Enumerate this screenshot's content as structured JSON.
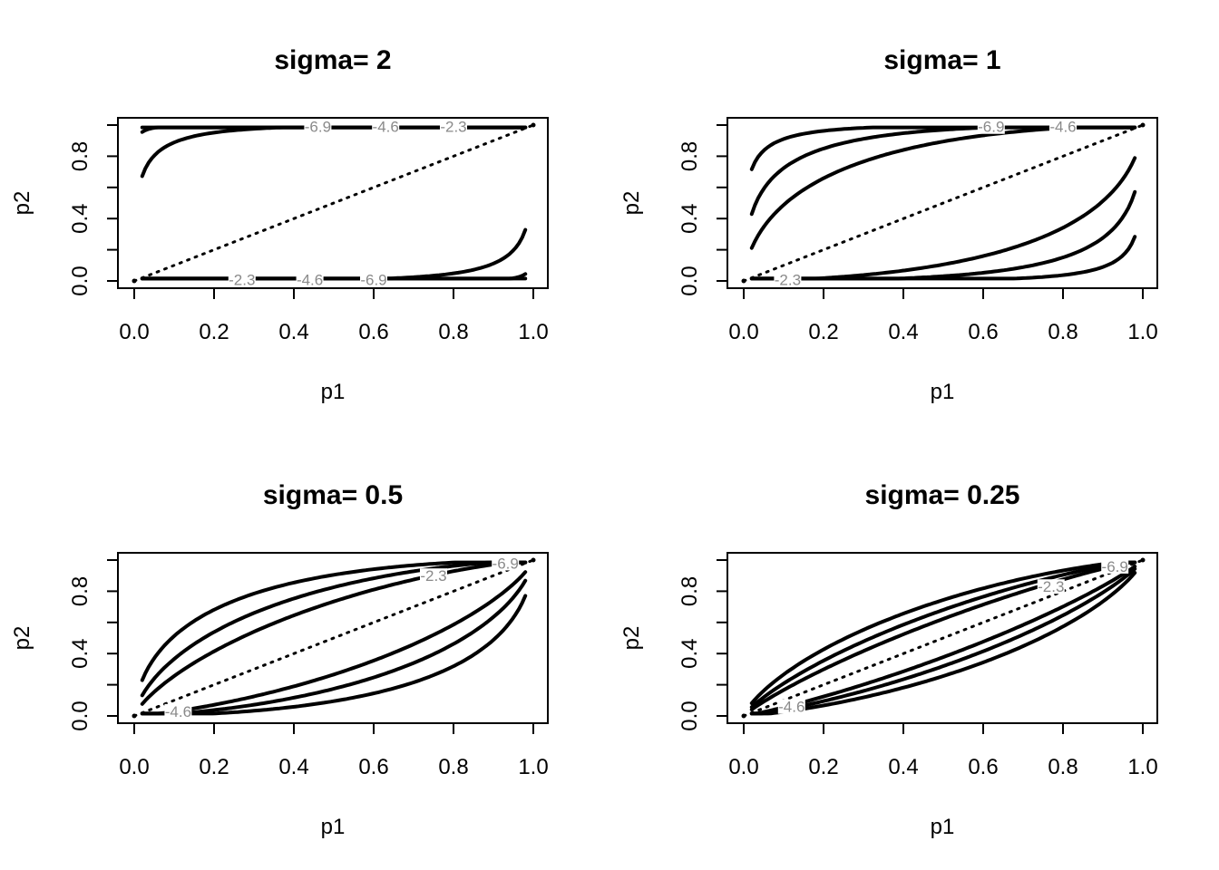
{
  "chart_data": [
    {
      "type": "line",
      "title": "sigma= 2",
      "sigma": 2,
      "xlabel": "p1",
      "ylabel": "p2",
      "xlim": [
        0,
        1
      ],
      "ylim": [
        0,
        1
      ],
      "xticks": [
        "0.0",
        "0.2",
        "0.4",
        "0.6",
        "0.8",
        "1.0"
      ],
      "yticks": [
        "0.0",
        "0.4",
        "0.8"
      ],
      "contour_levels": [
        -2.3,
        -4.6,
        -6.9
      ],
      "contour_labels": [
        {
          "text": "-6.9",
          "x": 0.46,
          "y": 0.99
        },
        {
          "text": "-4.6",
          "x": 0.63,
          "y": 0.99
        },
        {
          "text": "-2.3",
          "x": 0.8,
          "y": 0.99
        },
        {
          "text": "-2.3",
          "x": 0.27,
          "y": 0.01
        },
        {
          "text": "-4.6",
          "x": 0.44,
          "y": 0.01
        },
        {
          "text": "-6.9",
          "x": 0.6,
          "y": 0.01
        }
      ],
      "reference_line": {
        "from": [
          0,
          0
        ],
        "to": [
          1,
          1
        ],
        "style": "dotted"
      }
    },
    {
      "type": "line",
      "title": "sigma= 1",
      "sigma": 1,
      "xlabel": "p1",
      "ylabel": "p2",
      "xlim": [
        0,
        1
      ],
      "ylim": [
        0,
        1
      ],
      "xticks": [
        "0.0",
        "0.2",
        "0.4",
        "0.6",
        "0.8",
        "1.0"
      ],
      "yticks": [
        "0.0",
        "0.4",
        "0.8"
      ],
      "contour_levels": [
        -2.3,
        -4.6,
        -6.9
      ],
      "contour_labels": [
        {
          "text": "-6.9",
          "x": 0.62,
          "y": 0.99
        },
        {
          "text": "-4.6",
          "x": 0.8,
          "y": 0.99
        },
        {
          "text": "-2.3",
          "x": 0.11,
          "y": 0.01
        }
      ],
      "reference_line": {
        "from": [
          0,
          0
        ],
        "to": [
          1,
          1
        ],
        "style": "dotted"
      }
    },
    {
      "type": "line",
      "title": "sigma= 0.5",
      "sigma": 0.5,
      "xlabel": "p1",
      "ylabel": "p2",
      "xlim": [
        0,
        1
      ],
      "ylim": [
        0,
        1
      ],
      "xticks": [
        "0.0",
        "0.2",
        "0.4",
        "0.6",
        "0.8",
        "1.0"
      ],
      "yticks": [
        "0.0",
        "0.4",
        "0.8"
      ],
      "contour_levels": [
        -2.3,
        -4.6,
        -6.9
      ],
      "contour_labels": [
        {
          "text": "-2.3",
          "x": 0.75,
          "y": 0.9
        },
        {
          "text": "-6.9",
          "x": 0.93,
          "y": 0.98
        },
        {
          "text": "-4.6",
          "x": 0.11,
          "y": 0.03
        }
      ],
      "reference_line": {
        "from": [
          0,
          0
        ],
        "to": [
          1,
          1
        ],
        "style": "dotted"
      }
    },
    {
      "type": "line",
      "title": "sigma= 0.25",
      "sigma": 0.25,
      "xlabel": "p1",
      "ylabel": "p2",
      "xlim": [
        0,
        1
      ],
      "ylim": [
        0,
        1
      ],
      "xticks": [
        "0.0",
        "0.2",
        "0.4",
        "0.6",
        "0.8",
        "1.0"
      ],
      "yticks": [
        "0.0",
        "0.4",
        "0.8"
      ],
      "contour_levels": [
        -2.3,
        -4.6,
        -6.9
      ],
      "contour_labels": [
        {
          "text": "-2.3",
          "x": 0.77,
          "y": 0.83
        },
        {
          "text": "-6.9",
          "x": 0.93,
          "y": 0.96
        },
        {
          "text": "-4.6",
          "x": 0.12,
          "y": 0.06
        }
      ],
      "reference_line": {
        "from": [
          0,
          0
        ],
        "to": [
          1,
          1
        ],
        "style": "dotted"
      }
    }
  ]
}
